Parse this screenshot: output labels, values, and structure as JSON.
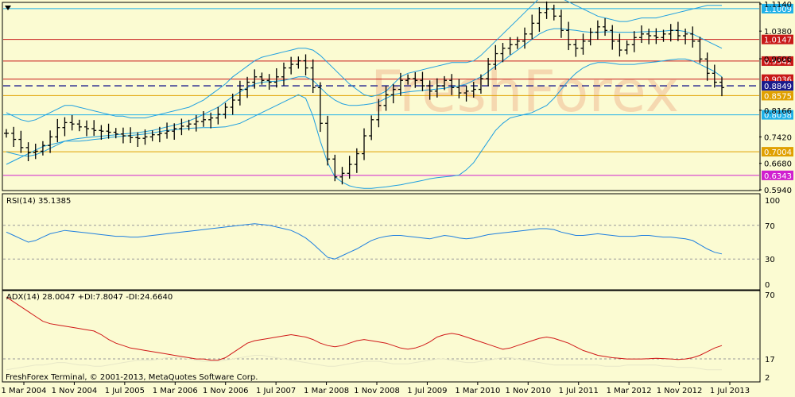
{
  "watermark": "FreshForex",
  "copyright": "FreshForex Terminal, © 2001-2013, MetaQuotes Software Corp.",
  "colors": {
    "background": "#fbfbd2",
    "bars": "#000000",
    "bands": "#1e9fe0",
    "rsi": "#1e7fe0",
    "adx": "#d01818",
    "adx_di": "#e8e8c8",
    "line_cyan": "#1eb0e8",
    "line_red": "#c81818",
    "line_orange": "#e0a000",
    "line_magenta": "#d020d0",
    "line_blue_dashed": "#1a1a8c",
    "watermark": "#f5d8b0"
  },
  "chart_data": [
    {
      "type": "ohlc",
      "panel": "price",
      "ylim": [
        0.594,
        1.114
      ],
      "y_ticks": [
        "1.1140",
        "1.0380",
        "0.9606",
        "0.8166",
        "0.7420",
        "0.6680",
        "0.5940"
      ],
      "levels": [
        {
          "value": "1.1009",
          "color": "cyan",
          "style": "solid"
        },
        {
          "value": "1.0147",
          "color": "red",
          "style": "solid"
        },
        {
          "value": "0.9542",
          "color": "red",
          "style": "solid"
        },
        {
          "value": "0.9036",
          "color": "red",
          "style": "solid"
        },
        {
          "value": "0.8849",
          "color": "blue",
          "style": "dashed"
        },
        {
          "value": "0.8575",
          "color": "orange",
          "style": "solid"
        },
        {
          "value": "0.8038",
          "color": "cyan",
          "style": "solid"
        },
        {
          "value": "0.7004",
          "color": "orange",
          "style": "solid"
        },
        {
          "value": "0.6343",
          "color": "magenta",
          "style": "solid"
        }
      ],
      "close_series": [
        0.752,
        0.735,
        0.712,
        0.698,
        0.702,
        0.718,
        0.742,
        0.768,
        0.782,
        0.778,
        0.77,
        0.765,
        0.76,
        0.758,
        0.755,
        0.75,
        0.745,
        0.74,
        0.738,
        0.742,
        0.748,
        0.752,
        0.758,
        0.765,
        0.772,
        0.778,
        0.785,
        0.79,
        0.795,
        0.805,
        0.825,
        0.845,
        0.875,
        0.895,
        0.91,
        0.9,
        0.895,
        0.91,
        0.935,
        0.945,
        0.955,
        0.935,
        0.88,
        0.78,
        0.68,
        0.63,
        0.64,
        0.665,
        0.695,
        0.745,
        0.79,
        0.83,
        0.86,
        0.875,
        0.9,
        0.905,
        0.9,
        0.885,
        0.87,
        0.885,
        0.9,
        0.88,
        0.865,
        0.87,
        0.875,
        0.905,
        0.945,
        0.975,
        0.99,
        1.0,
        1.01,
        1.03,
        1.06,
        1.09,
        1.1,
        1.08,
        1.04,
        1.0,
        0.99,
        1.01,
        1.035,
        1.05,
        1.04,
        1.01,
        0.985,
        1.0,
        1.02,
        1.03,
        1.025,
        1.02,
        1.03,
        1.04,
        1.025,
        1.03,
        1.01,
        0.96,
        0.92,
        0.895,
        0.88
      ],
      "bands_upper": [
        0.81,
        0.8,
        0.79,
        0.785,
        0.79,
        0.8,
        0.81,
        0.82,
        0.83,
        0.83,
        0.825,
        0.82,
        0.815,
        0.81,
        0.805,
        0.8,
        0.8,
        0.795,
        0.795,
        0.795,
        0.8,
        0.805,
        0.81,
        0.815,
        0.82,
        0.825,
        0.835,
        0.845,
        0.86,
        0.875,
        0.89,
        0.91,
        0.925,
        0.94,
        0.955,
        0.965,
        0.97,
        0.975,
        0.98,
        0.985,
        0.99,
        0.99,
        0.985,
        0.97,
        0.95,
        0.93,
        0.91,
        0.89,
        0.875,
        0.86,
        0.855,
        0.86,
        0.87,
        0.89,
        0.91,
        0.92,
        0.925,
        0.93,
        0.935,
        0.94,
        0.945,
        0.95,
        0.95,
        0.95,
        0.955,
        0.97,
        0.99,
        1.01,
        1.03,
        1.05,
        1.07,
        1.09,
        1.11,
        1.13,
        1.14,
        1.14,
        1.13,
        1.12,
        1.11,
        1.1,
        1.09,
        1.08,
        1.075,
        1.07,
        1.065,
        1.065,
        1.07,
        1.075,
        1.075,
        1.075,
        1.08,
        1.085,
        1.09,
        1.095,
        1.1,
        1.105,
        1.11,
        1.11,
        1.11
      ],
      "bands_middle": [
        0.7,
        0.695,
        0.69,
        0.688,
        0.692,
        0.7,
        0.71,
        0.72,
        0.73,
        0.735,
        0.738,
        0.74,
        0.742,
        0.744,
        0.746,
        0.748,
        0.75,
        0.752,
        0.754,
        0.757,
        0.76,
        0.765,
        0.77,
        0.775,
        0.78,
        0.787,
        0.795,
        0.805,
        0.815,
        0.825,
        0.84,
        0.855,
        0.868,
        0.88,
        0.89,
        0.895,
        0.897,
        0.898,
        0.9,
        0.905,
        0.91,
        0.91,
        0.9,
        0.88,
        0.86,
        0.845,
        0.835,
        0.83,
        0.83,
        0.832,
        0.835,
        0.84,
        0.85,
        0.86,
        0.865,
        0.868,
        0.87,
        0.872,
        0.874,
        0.876,
        0.878,
        0.882,
        0.885,
        0.89,
        0.9,
        0.91,
        0.925,
        0.94,
        0.955,
        0.97,
        0.985,
        1.0,
        1.015,
        1.03,
        1.04,
        1.045,
        1.045,
        1.042,
        1.04,
        1.037,
        1.035,
        1.035,
        1.036,
        1.036,
        1.035,
        1.035,
        1.035,
        1.036,
        1.037,
        1.037,
        1.038,
        1.04,
        1.04,
        1.037,
        1.03,
        1.02,
        1.01,
        1.0,
        0.99
      ],
      "bands_lower": [
        0.665,
        0.675,
        0.685,
        0.695,
        0.705,
        0.715,
        0.72,
        0.725,
        0.73,
        0.73,
        0.73,
        0.732,
        0.735,
        0.737,
        0.74,
        0.742,
        0.744,
        0.746,
        0.748,
        0.75,
        0.753,
        0.757,
        0.76,
        0.762,
        0.764,
        0.766,
        0.767,
        0.768,
        0.768,
        0.769,
        0.77,
        0.775,
        0.78,
        0.79,
        0.8,
        0.81,
        0.82,
        0.83,
        0.84,
        0.85,
        0.86,
        0.85,
        0.8,
        0.73,
        0.67,
        0.63,
        0.615,
        0.605,
        0.6,
        0.598,
        0.598,
        0.6,
        0.602,
        0.605,
        0.608,
        0.612,
        0.616,
        0.62,
        0.625,
        0.628,
        0.63,
        0.632,
        0.635,
        0.65,
        0.67,
        0.7,
        0.73,
        0.76,
        0.78,
        0.795,
        0.8,
        0.805,
        0.81,
        0.82,
        0.83,
        0.85,
        0.875,
        0.9,
        0.92,
        0.935,
        0.945,
        0.95,
        0.95,
        0.948,
        0.945,
        0.945,
        0.945,
        0.948,
        0.95,
        0.952,
        0.955,
        0.958,
        0.96,
        0.96,
        0.955,
        0.945,
        0.935,
        0.925,
        0.91
      ]
    },
    {
      "type": "line",
      "panel": "rsi",
      "header": "RSI(14) 35.1385",
      "ylim": [
        0,
        100
      ],
      "y_ticks": [
        "100",
        "70",
        "30",
        "0"
      ],
      "levels": [
        "70",
        "30"
      ],
      "values": [
        62,
        58,
        54,
        50,
        52,
        56,
        60,
        62,
        64,
        63,
        62,
        61,
        60,
        59,
        58,
        57,
        57,
        56,
        56,
        57,
        58,
        59,
        60,
        61,
        62,
        63,
        64,
        65,
        66,
        67,
        68,
        69,
        70,
        71,
        72,
        71,
        70,
        68,
        66,
        64,
        60,
        55,
        48,
        40,
        32,
        30,
        34,
        38,
        42,
        47,
        52,
        55,
        57,
        58,
        58,
        57,
        56,
        55,
        54,
        56,
        58,
        57,
        55,
        54,
        55,
        57,
        59,
        60,
        61,
        62,
        63,
        64,
        65,
        66,
        66,
        65,
        62,
        60,
        58,
        58,
        59,
        60,
        59,
        58,
        57,
        57,
        57,
        58,
        58,
        57,
        56,
        56,
        55,
        54,
        52,
        47,
        42,
        38,
        36
      ]
    },
    {
      "type": "line",
      "panel": "adx",
      "header": "ADX(14) 28.0047 +DI:7.8047 -DI:24.6640",
      "ylim": [
        2,
        70
      ],
      "y_ticks": [
        "70",
        "17",
        "2"
      ],
      "levels": [
        "17"
      ],
      "values": [
        68,
        64,
        60,
        56,
        52,
        48,
        46,
        45,
        44,
        43,
        42,
        41,
        40,
        37,
        33,
        30,
        28,
        26,
        25,
        24,
        23,
        22,
        21,
        20,
        19,
        18,
        17,
        17,
        16,
        16,
        18,
        22,
        26,
        30,
        32,
        33,
        34,
        35,
        36,
        37,
        36,
        35,
        33,
        30,
        28,
        27,
        28,
        30,
        32,
        33,
        32,
        31,
        30,
        28,
        26,
        25,
        26,
        28,
        31,
        35,
        37,
        38,
        37,
        35,
        33,
        31,
        29,
        27,
        25,
        26,
        28,
        30,
        32,
        34,
        35,
        34,
        32,
        30,
        27,
        24,
        22,
        20,
        19,
        18,
        17.5,
        17,
        17,
        17,
        17.2,
        17.5,
        17.3,
        17,
        16.5,
        17,
        18,
        20,
        23,
        26,
        28
      ],
      "di_values": [
        8,
        9,
        10,
        11,
        12,
        12,
        13,
        14,
        14,
        13,
        12,
        12,
        11,
        11,
        12,
        13,
        14,
        15,
        16,
        16,
        16,
        17,
        18,
        18,
        18,
        17,
        16,
        15,
        15,
        15,
        16,
        17,
        18,
        19,
        20,
        20,
        19,
        18,
        17,
        16,
        15,
        14,
        13,
        12,
        11,
        11,
        12,
        13,
        14,
        15,
        15,
        15,
        14,
        13,
        13,
        13,
        14,
        15,
        16,
        17,
        17,
        16,
        15,
        14,
        14,
        15,
        16,
        17,
        18,
        18,
        17,
        16,
        15,
        14,
        13,
        12,
        12,
        12,
        12,
        12,
        12,
        12,
        11,
        11,
        11,
        12,
        12,
        12,
        12,
        12,
        11,
        11,
        10,
        10,
        10,
        9,
        8,
        8,
        8
      ]
    },
    {
      "type": "axis",
      "panel": "time",
      "x_ticks": [
        "1 Mar 2004",
        "1 Nov 2004",
        "1 Jul 2005",
        "1 Mar 2006",
        "1 Nov 2006",
        "1 Jul 2007",
        "1 Mar 2008",
        "1 Nov 2008",
        "1 Jul 2009",
        "1 Mar 2010",
        "1 Nov 2010",
        "1 Jul 2011",
        "1 Mar 2012",
        "1 Nov 2012",
        "1 Jul 2013"
      ]
    }
  ]
}
